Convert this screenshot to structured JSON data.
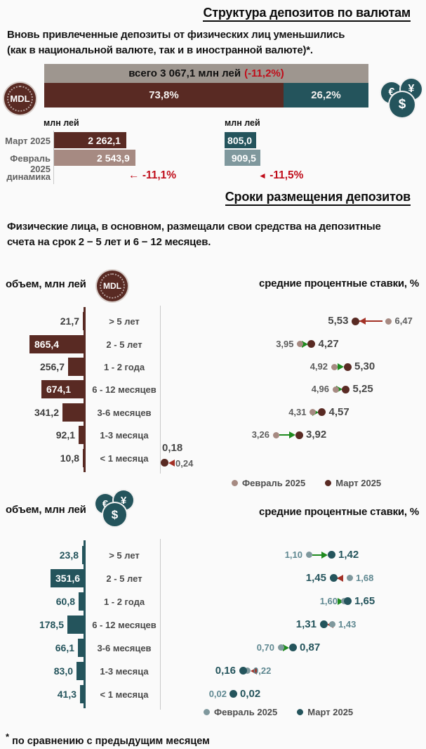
{
  "colors": {
    "maroon": "#592a23",
    "mauve": "#a68a82",
    "teal": "#24545c",
    "teal_light": "#7f989d",
    "gray_bar": "#9e968f",
    "red_text": "#c00d1a",
    "green_arrow": "#1f8b1f",
    "red_arrow": "#a33126",
    "background": "#fafafa"
  },
  "header": {
    "title": "Структура депозитов по валютам",
    "intro_line1": "Вновь привлеченные депозиты от физических лиц уменьшились",
    "intro_line2": "(как в национальной валюте, так и в иностранной валюте)*."
  },
  "overview": {
    "total_text": "всего 3 067,1 млн лей",
    "total_change": "(-11,2%)",
    "mdl_share_label": "73,8%",
    "fx_share_label": "26,2%",
    "mdl_share_pct": 73.8,
    "fx_share_pct": 26.2,
    "mdl_unit": "млн лей",
    "fx_unit": "млн лей",
    "rows": {
      "march_label": "Март 2025",
      "feb_label": "Февраль 2025",
      "dyn_label": "динамика",
      "mdl_march": "2 262,1",
      "mdl_feb": "2 543,9",
      "mdl_dyn_arrow": "←",
      "mdl_dyn": "-11,1%",
      "fx_march": "805,0",
      "fx_feb": "909,5",
      "fx_dyn_arrow": "◄",
      "fx_dyn": "-11,5%"
    },
    "values": {
      "mdl_march": 2262.1,
      "mdl_feb": 2543.9,
      "fx_march": 805.0,
      "fx_feb": 909.5
    }
  },
  "terms_section": {
    "title": "Сроки размещения депозитов",
    "intro_line1": "Физические лица, в основном, размещали свои средства на депозитные",
    "intro_line2": "счета на срок 2 − 5 лет и 6 − 12 месяцев."
  },
  "icons": {
    "mdl_coin": "MDL",
    "euro": "€",
    "yen": "¥",
    "dollar": "$"
  },
  "footnote": {
    "star": "*",
    "text": "по сравнению с предыдущим месяцем"
  },
  "chart_data": [
    {
      "type": "bar",
      "name": "mdl_volumes",
      "title": "объем, млн лей",
      "currency": "MDL",
      "categories": [
        "> 5 лет",
        "2 - 5 лет",
        "1 - 2 года",
        "6 - 12 месяцев",
        "3-6 месяцев",
        "1-3 месяца",
        "< 1 месяца"
      ],
      "values": [
        21.7,
        865.4,
        256.7,
        674.1,
        341.2,
        92.1,
        10.8
      ],
      "value_labels": [
        "21,7",
        "865,4",
        "256,7",
        "674,1",
        "341,2",
        "92,1",
        "10,8"
      ]
    },
    {
      "type": "dumbbell",
      "name": "mdl_rates",
      "title": "средние процентные ставки, %",
      "currency": "MDL",
      "categories": [
        "> 5 лет",
        "2 - 5 лет",
        "1 - 2 года",
        "6 - 12 месяцев",
        "3-6 месяцев",
        "1-3 месяца",
        "< 1 месяца"
      ],
      "series": [
        {
          "name": "Февраль 2025",
          "values": [
            6.47,
            3.95,
            4.92,
            4.96,
            4.31,
            3.26,
            0.24
          ],
          "labels": [
            "6,47",
            "3,95",
            "4,92",
            "4,96",
            "4,31",
            "3,26",
            "0,24"
          ]
        },
        {
          "name": "Март 2025",
          "values": [
            5.53,
            4.27,
            5.3,
            5.25,
            4.57,
            3.92,
            0.18
          ],
          "labels": [
            "5,53",
            "4,27",
            "5,30",
            "5,25",
            "4,57",
            "3,92",
            "0,18"
          ]
        }
      ],
      "legend": [
        "Февраль 2025",
        "Март 2025"
      ]
    },
    {
      "type": "bar",
      "name": "fx_volumes",
      "title": "объем, млн лей",
      "currency": "иностранная валюта",
      "categories": [
        "> 5 лет",
        "2 - 5 лет",
        "1 - 2 года",
        "6 - 12 месяцев",
        "3-6 месяцев",
        "1-3 месяца",
        "< 1 месяца"
      ],
      "values": [
        23.8,
        351.6,
        60.8,
        178.5,
        66.1,
        83.0,
        41.3
      ],
      "value_labels": [
        "23,8",
        "351,6",
        "60,8",
        "178,5",
        "66,1",
        "83,0",
        "41,3"
      ]
    },
    {
      "type": "dumbbell",
      "name": "fx_rates",
      "title": "средние процентные ставки, %",
      "currency": "иностранная валюта",
      "categories": [
        "> 5 лет",
        "2 - 5 лет",
        "1 - 2 года",
        "6 - 12 месяцев",
        "3-6 месяцев",
        "1-3 месяца",
        "< 1 месяца"
      ],
      "series": [
        {
          "name": "Февраль 2025",
          "values": [
            1.1,
            1.68,
            1.6,
            1.43,
            0.7,
            0.22,
            0.02
          ],
          "labels": [
            "1,10",
            "1,68",
            "1,60",
            "1,43",
            "0,70",
            "0,22",
            "0,02"
          ]
        },
        {
          "name": "Март 2025",
          "values": [
            1.42,
            1.45,
            1.65,
            1.31,
            0.87,
            0.16,
            0.02
          ],
          "labels": [
            "1,42",
            "1,45",
            "1,65",
            "1,31",
            "0,87",
            "0,16",
            "0,02"
          ]
        }
      ],
      "legend": [
        "Февраль 2025",
        "Март 2025"
      ]
    }
  ]
}
